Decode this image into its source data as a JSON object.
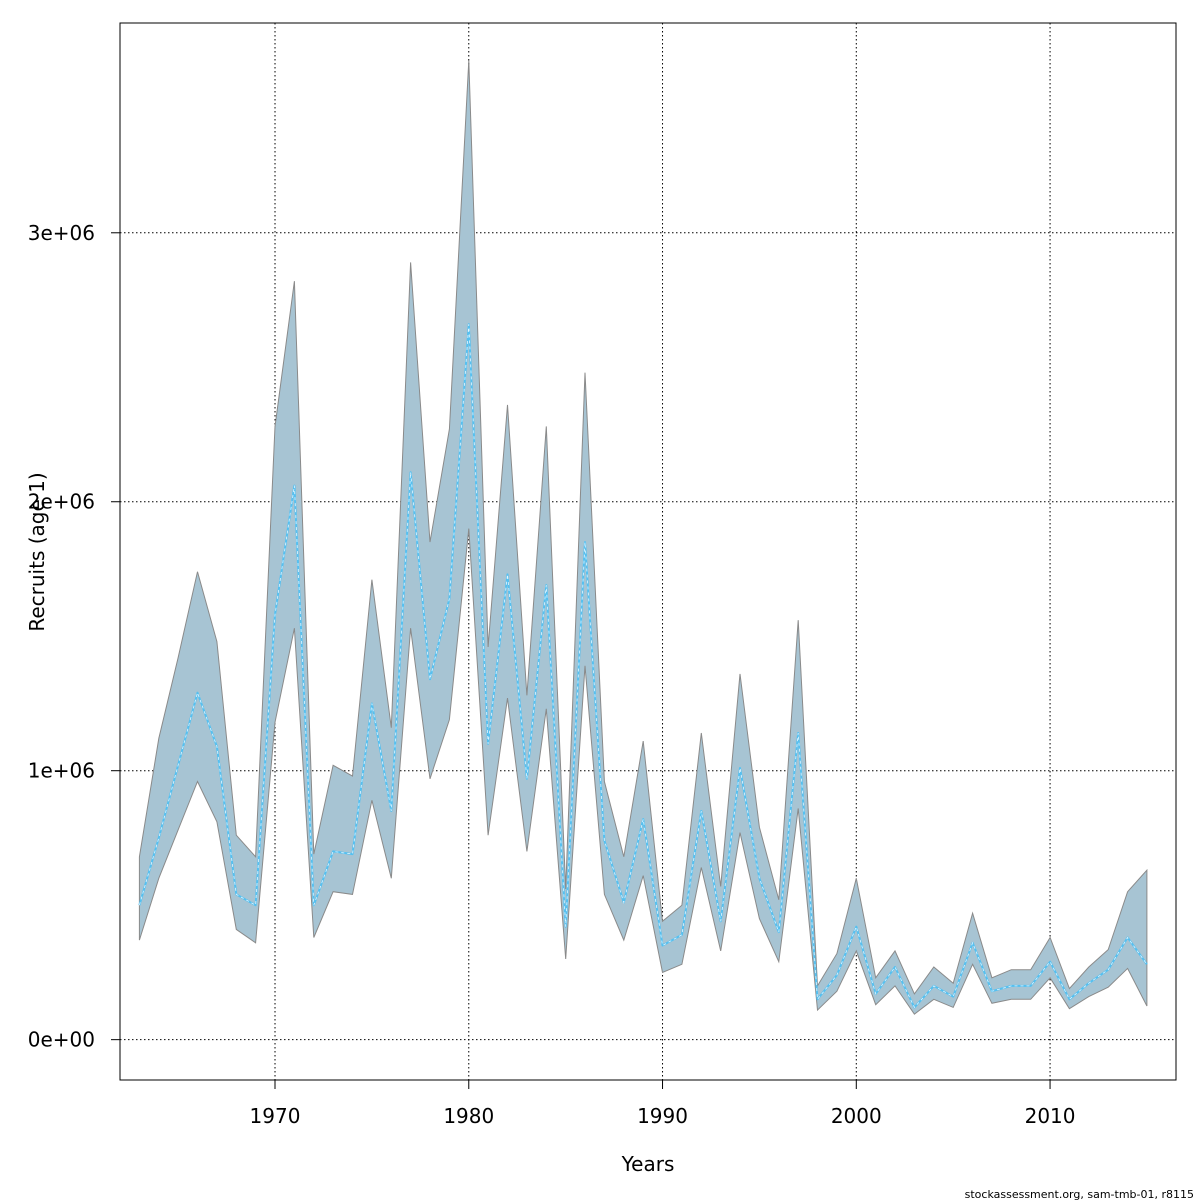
{
  "chart_data": {
    "type": "area",
    "xlabel": "Years",
    "ylabel": "Recruits (age 1)",
    "xlim": [
      1962,
      2016.5
    ],
    "ylim": [
      -150000,
      3780000
    ],
    "x_ticks": [
      1970,
      1980,
      1990,
      2000,
      2010
    ],
    "x_tick_labels": [
      "1970",
      "1980",
      "1990",
      "2000",
      "2010"
    ],
    "y_ticks": [
      0,
      1000000,
      2000000,
      3000000
    ],
    "y_tick_labels": [
      "0e+00",
      "1e+06",
      "2e+06",
      "3e+06"
    ],
    "grid": true,
    "band_color": "#a7c4d3",
    "band_edge_color": "#8a8a8a",
    "line_color": "#55c0f0",
    "x": [
      1963,
      1964,
      1965,
      1966,
      1967,
      1968,
      1969,
      1970,
      1971,
      1972,
      1973,
      1974,
      1975,
      1976,
      1977,
      1978,
      1979,
      1980,
      1981,
      1982,
      1983,
      1984,
      1985,
      1986,
      1987,
      1988,
      1989,
      1990,
      1991,
      1992,
      1993,
      1994,
      1995,
      1996,
      1997,
      1998,
      1999,
      2000,
      2001,
      2002,
      2003,
      2004,
      2005,
      2006,
      2007,
      2008,
      2009,
      2010,
      2011,
      2012,
      2013,
      2014,
      2015
    ],
    "series": [
      {
        "values": [
          500000,
          750000,
          1020000,
          1290000,
          1090000,
          540000,
          500000,
          1580000,
          2060000,
          500000,
          700000,
          690000,
          1250000,
          850000,
          2110000,
          1340000,
          1640000,
          2660000,
          1100000,
          1730000,
          970000,
          1690000,
          420000,
          1850000,
          740000,
          510000,
          820000,
          350000,
          390000,
          850000,
          440000,
          1010000,
          600000,
          400000,
          1140000,
          150000,
          240000,
          420000,
          170000,
          270000,
          120000,
          200000,
          160000,
          360000,
          180000,
          200000,
          200000,
          290000,
          150000,
          210000,
          260000,
          380000,
          280000
        ],
        "lower": [
          370000,
          600000,
          780000,
          960000,
          810000,
          410000,
          360000,
          1180000,
          1530000,
          380000,
          550000,
          540000,
          890000,
          600000,
          1530000,
          970000,
          1190000,
          1900000,
          760000,
          1270000,
          700000,
          1230000,
          300000,
          1390000,
          540000,
          370000,
          610000,
          250000,
          280000,
          640000,
          330000,
          770000,
          450000,
          290000,
          860000,
          110000,
          180000,
          330000,
          130000,
          200000,
          95000,
          150000,
          120000,
          280000,
          135000,
          150000,
          150000,
          230000,
          115000,
          160000,
          195000,
          265000,
          125000
        ],
        "upper": [
          680000,
          1120000,
          1420000,
          1740000,
          1480000,
          760000,
          680000,
          2280000,
          2820000,
          690000,
          1020000,
          980000,
          1710000,
          1160000,
          2890000,
          1850000,
          2270000,
          3640000,
          1460000,
          2360000,
          1280000,
          2280000,
          560000,
          2480000,
          960000,
          680000,
          1110000,
          440000,
          500000,
          1140000,
          570000,
          1360000,
          790000,
          520000,
          1560000,
          200000,
          320000,
          600000,
          230000,
          330000,
          170000,
          270000,
          210000,
          470000,
          230000,
          260000,
          260000,
          380000,
          190000,
          270000,
          335000,
          550000,
          630000
        ]
      }
    ]
  },
  "credit_text": "stockassessment.org, sam-tmb-01, r8115"
}
